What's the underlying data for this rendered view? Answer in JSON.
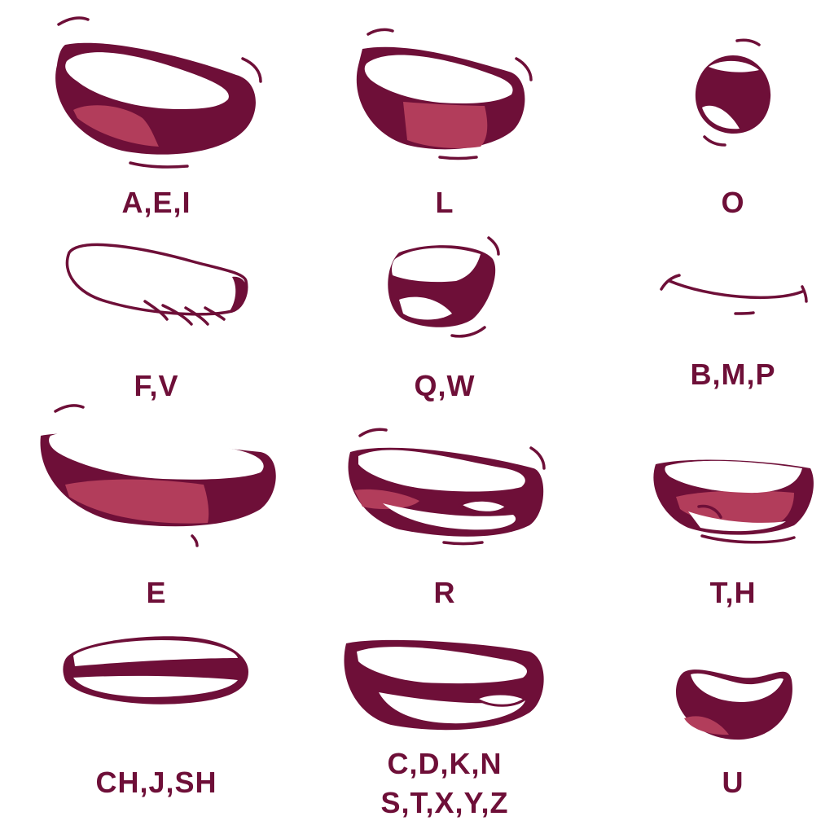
{
  "colors": {
    "outline": "#6e0f38",
    "mouth_interior": "#6e0f38",
    "tongue": "#b23d5b",
    "teeth": "#ffffff",
    "label": "#6e0f38"
  },
  "shapes": [
    {
      "id": "aei",
      "label": "A,E,I"
    },
    {
      "id": "l",
      "label": "L"
    },
    {
      "id": "o",
      "label": "O"
    },
    {
      "id": "fv",
      "label": "F,V"
    },
    {
      "id": "qw",
      "label": "Q,W"
    },
    {
      "id": "bmp",
      "label": "B,M,P"
    },
    {
      "id": "e",
      "label": "E"
    },
    {
      "id": "r",
      "label": "R"
    },
    {
      "id": "th",
      "label": "T,H"
    },
    {
      "id": "chjsh",
      "label": "CH,J,SH"
    },
    {
      "id": "cdkn",
      "label": "C,D,K,N",
      "label2": "S,T,X,Y,Z"
    },
    {
      "id": "u",
      "label": "U"
    }
  ]
}
